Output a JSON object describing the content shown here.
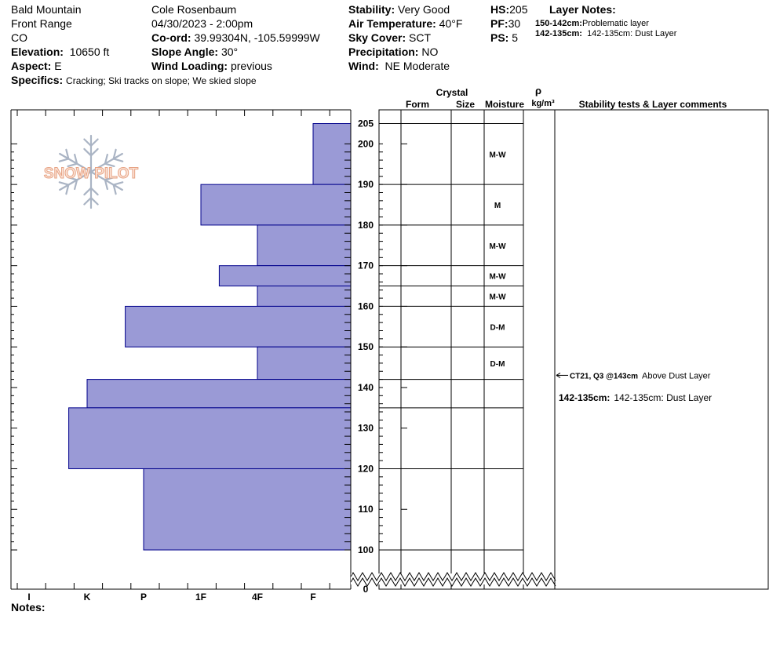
{
  "header": {
    "location": "Bald Mountain",
    "range": "Front Range",
    "state": "CO",
    "elevation_label": "Elevation:",
    "elevation": "10650 ft",
    "aspect_label": "Aspect:",
    "aspect": "E",
    "specifics_label": "Specifics:",
    "specifics": "Cracking;  Ski tracks on slope;  We skied slope",
    "observer": "Cole Rosenbaum",
    "datetime": "04/30/2023 - 2:00pm",
    "coord_label": "Co-ord:",
    "coord": "39.99304N, -105.59999W",
    "slope_label": "Slope Angle:",
    "slope": "30°",
    "wind_loading_label": "Wind Loading:",
    "wind_loading": "previous",
    "stability_label": "Stability:",
    "stability": "Very Good",
    "air_temp_label": "Air Temperature:",
    "air_temp": "40°F",
    "sky_label": "Sky Cover:",
    "sky": "SCT",
    "precip_label": "Precipitation:",
    "precip": "NO",
    "wind_label": "Wind:",
    "wind": "NE Moderate",
    "hs_label": "HS:",
    "hs": "205",
    "pf_label": "PF:",
    "pf": "30",
    "ps_label": "PS:",
    "ps": "5",
    "layer_notes_title": "Layer Notes:",
    "layer_notes": [
      {
        "range": "150-142cm:",
        "text": "Problematic layer"
      },
      {
        "range": "142-135cm:",
        "text": "142-135cm: Dust Layer"
      }
    ]
  },
  "columns": {
    "crystal": "Crystal",
    "form": "Form",
    "size": "Size",
    "moisture": "Moisture",
    "rho": "ρ",
    "density_unit": "kg/m³",
    "comments": "Stability tests & Layer comments"
  },
  "logo_text": "SNOW PILOT",
  "notes_label": "Notes:",
  "stability_comments": [
    {
      "depth": 143,
      "test": "CT21, Q3 @143cm",
      "text": "Above Dust Layer"
    },
    {
      "depth": 137,
      "label": "142-135cm:",
      "text": "142-135cm: Dust Layer"
    }
  ],
  "chart_data": {
    "type": "bar",
    "orientation": "horizontal",
    "x_categories": [
      "I",
      "K",
      "P",
      "1F",
      "4F",
      "F"
    ],
    "x_reversed": true,
    "y_range": [
      0,
      205
    ],
    "y_axis_break": [
      0,
      100
    ],
    "y_ticks": [
      0,
      100,
      110,
      120,
      130,
      140,
      150,
      160,
      170,
      180,
      190,
      200,
      205
    ],
    "layers": [
      {
        "top": 205,
        "bottom": 190,
        "hardness": "F",
        "moisture": "M-W"
      },
      {
        "top": 190,
        "bottom": 180,
        "hardness": "1F",
        "moisture": "M"
      },
      {
        "top": 180,
        "bottom": 170,
        "hardness": "4F",
        "moisture": "M-W"
      },
      {
        "top": 170,
        "bottom": 165,
        "hardness": "1F-",
        "moisture": "M-W"
      },
      {
        "top": 165,
        "bottom": 160,
        "hardness": "4F",
        "moisture": "M-W"
      },
      {
        "top": 160,
        "bottom": 150,
        "hardness": "P+",
        "moisture": "D-M"
      },
      {
        "top": 150,
        "bottom": 142,
        "hardness": "4F",
        "moisture": "D-M"
      },
      {
        "top": 142,
        "bottom": 135,
        "hardness": "K",
        "moisture": ""
      },
      {
        "top": 135,
        "bottom": 120,
        "hardness": "K+",
        "moisture": ""
      },
      {
        "top": 120,
        "bottom": 100,
        "hardness": "P",
        "moisture": ""
      }
    ],
    "colors": {
      "bar": "#9a9ad6",
      "bar_stroke": "#00008b"
    }
  }
}
